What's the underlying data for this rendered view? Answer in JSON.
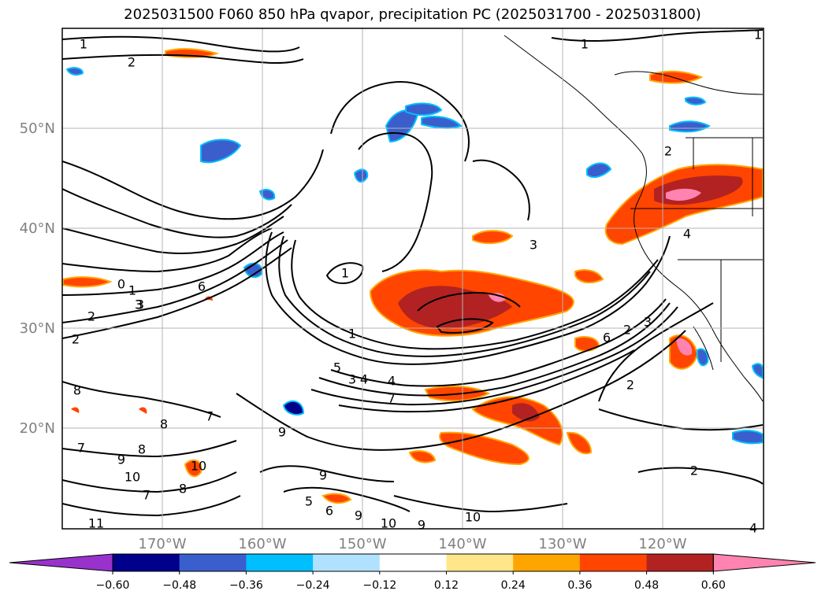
{
  "title": "2025031500 F060 850 hPa qvapor, precipitation PC (2025031700 - 2025031800)",
  "map": {
    "lat_labels": [
      "50°N",
      "40°N",
      "30°N",
      "20°N"
    ],
    "lon_labels": [
      "170°W",
      "160°W",
      "150°W",
      "140°W",
      "130°W",
      "120°W"
    ],
    "contour_labels": [
      "1",
      "2",
      "1",
      "1",
      "0",
      "1",
      "3",
      "2",
      "2",
      "6",
      "1",
      "3",
      "4",
      "5",
      "3",
      "4",
      "7",
      "6",
      "2",
      "3",
      "2",
      "8",
      "7",
      "8",
      "7",
      "9",
      "8",
      "9",
      "10",
      "10",
      "7",
      "8",
      "9",
      "5",
      "6",
      "9",
      "10",
      "9",
      "10",
      "11",
      "2",
      "4",
      "4",
      "3",
      "2",
      "1"
    ]
  },
  "colorbar": {
    "tick_labels": [
      "−0.60",
      "−0.48",
      "−0.36",
      "−0.24",
      "−0.12",
      "0.12",
      "0.24",
      "0.36",
      "0.48",
      "0.60"
    ],
    "colors": [
      "#9932cc",
      "#00008b",
      "#3a5fcd",
      "#00bfff",
      "#b0e2ff",
      "#ffffff",
      "#ffe68a",
      "#ffa500",
      "#ff4500",
      "#b22222",
      "#ff83b0"
    ]
  }
}
